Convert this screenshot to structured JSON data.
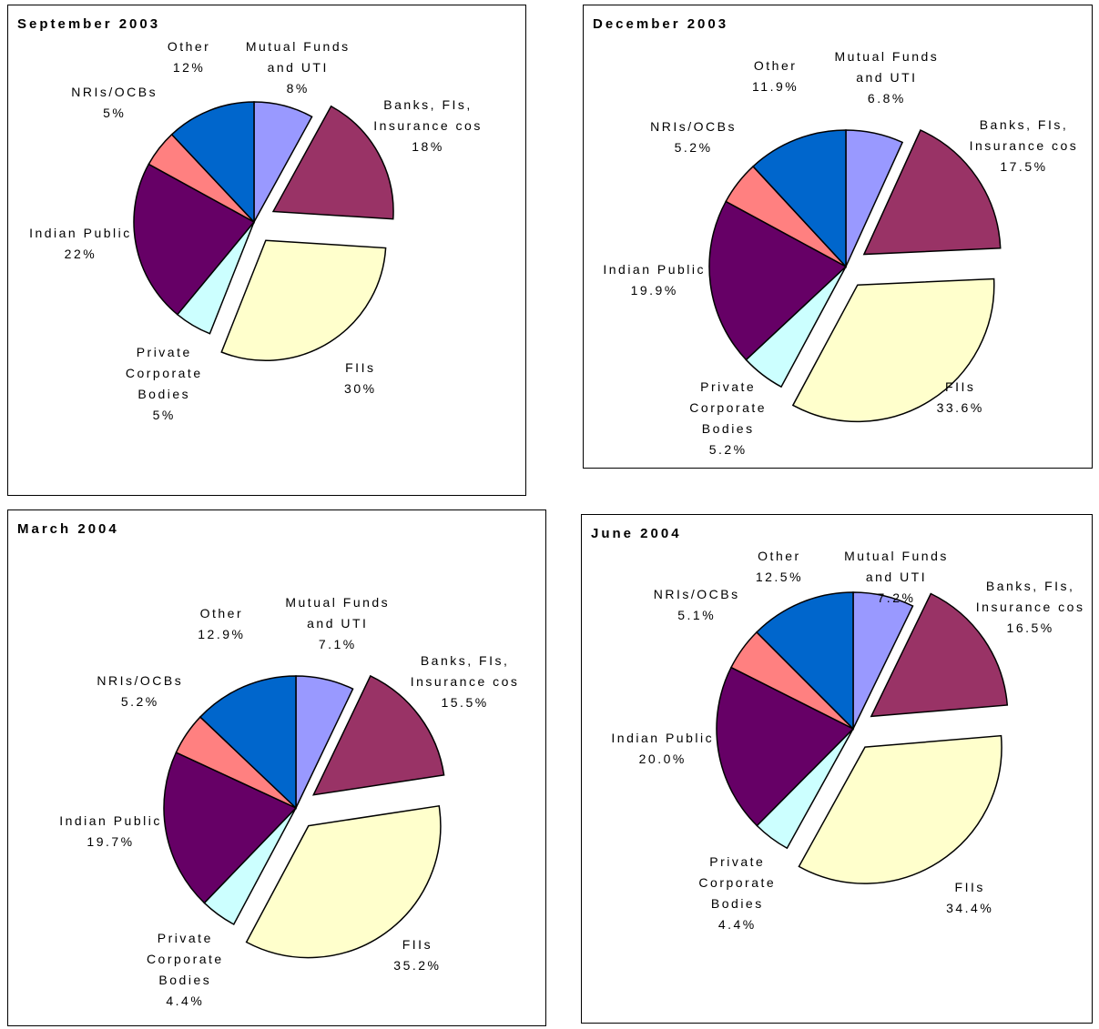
{
  "chart_data": [
    {
      "type": "pie",
      "title": "September 2003",
      "categories": [
        "Mutual Funds and UTI",
        "Banks, FIs, Insurance cos",
        "FIIs",
        "Private Corporate Bodies",
        "Indian Public",
        "NRIs/OCBs",
        "Other"
      ],
      "values": [
        8,
        18,
        30,
        5,
        22,
        5,
        12
      ],
      "value_labels": [
        "8%",
        "18%",
        "30%",
        "5%",
        "22%",
        "5%",
        "12%"
      ],
      "colors": [
        "#9999ff",
        "#993366",
        "#ffffcc",
        "#ccffff",
        "#660066",
        "#ff8080",
        "#0066cc"
      ]
    },
    {
      "type": "pie",
      "title": "December 2003",
      "categories": [
        "Mutual Funds and UTI",
        "Banks, FIs, Insurance cos",
        "FIIs",
        "Private Corporate Bodies",
        "Indian Public",
        "NRIs/OCBs",
        "Other"
      ],
      "values": [
        6.8,
        17.5,
        33.6,
        5.2,
        19.9,
        5.2,
        11.9
      ],
      "value_labels": [
        "6.8%",
        "17.5%",
        "33.6%",
        "5.2%",
        "19.9%",
        "5.2%",
        "11.9%"
      ],
      "colors": [
        "#9999ff",
        "#993366",
        "#ffffcc",
        "#ccffff",
        "#660066",
        "#ff8080",
        "#0066cc"
      ]
    },
    {
      "type": "pie",
      "title": "March 2004",
      "categories": [
        "Mutual Funds and UTI",
        "Banks, FIs, Insurance cos",
        "FIIs",
        "Private Corporate Bodies",
        "Indian Public",
        "NRIs/OCBs",
        "Other"
      ],
      "values": [
        7.1,
        15.5,
        35.2,
        4.4,
        19.7,
        5.2,
        12.9
      ],
      "value_labels": [
        "7.1%",
        "15.5%",
        "35.2%",
        "4.4%",
        "19.7%",
        "5.2%",
        "12.9%"
      ],
      "colors": [
        "#9999ff",
        "#993366",
        "#ffffcc",
        "#ccffff",
        "#660066",
        "#ff8080",
        "#0066cc"
      ]
    },
    {
      "type": "pie",
      "title": "June 2004",
      "categories": [
        "Mutual Funds and UTI",
        "Banks, FIs, Insurance cos",
        "FIIs",
        "Private Corporate Bodies",
        "Indian Public",
        "NRIs/OCBs",
        "Other"
      ],
      "values": [
        7.2,
        16.5,
        34.4,
        4.4,
        20.0,
        5.1,
        12.5
      ],
      "value_labels": [
        "7.2%",
        "16.5%",
        "34.4%",
        "4.4%",
        "20.0%",
        "5.1%",
        "12.5%"
      ],
      "colors": [
        "#9999ff",
        "#993366",
        "#ffffcc",
        "#ccffff",
        "#660066",
        "#ff8080",
        "#0066cc"
      ]
    }
  ]
}
